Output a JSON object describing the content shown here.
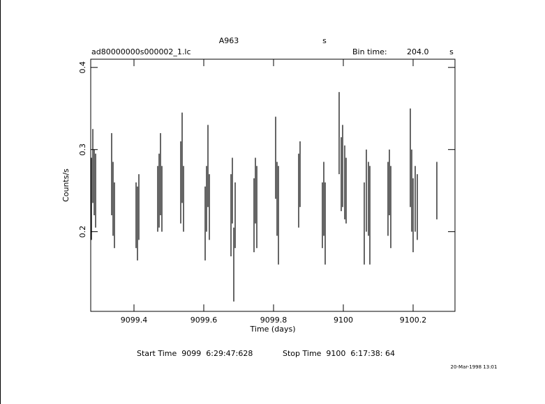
{
  "chart_data": {
    "type": "errorbar",
    "title": "A963",
    "title_unit": "s",
    "subtitle": "ad80000000s000002_1.lc",
    "bin_label": "Bin time:",
    "bin_value": "204.0",
    "bin_unit": "s",
    "xlabel": "Time (days)",
    "ylabel": "Counts/s",
    "footer": [
      "Start Time  9099  6:29:47:628",
      "Stop Time  9100  6:17:38: 64"
    ],
    "timestamp": "20-Mar-1998 13:01",
    "color": "#000000",
    "xlim": [
      9099.276,
      9100.32
    ],
    "ylim": [
      0.103,
      0.41
    ],
    "xticks": [
      9099.4,
      9099.6,
      9099.8,
      9100,
      9100.2
    ],
    "yticks": [
      0.2,
      0.3,
      0.4
    ],
    "x": [
      9099.278,
      9099.282,
      9099.286,
      9099.29,
      9099.336,
      9099.34,
      9099.344,
      9099.406,
      9099.41,
      9099.414,
      9099.468,
      9099.472,
      9099.476,
      9099.48,
      9099.534,
      9099.538,
      9099.542,
      9099.604,
      9099.608,
      9099.612,
      9099.616,
      9099.678,
      9099.682,
      9099.686,
      9099.69,
      9099.744,
      9099.748,
      9099.752,
      9099.806,
      9099.81,
      9099.814,
      9099.872,
      9099.876,
      9099.94,
      9099.944,
      9099.948,
      9099.988,
      9099.994,
      9099.998,
      9100.004,
      9100.008,
      9100.06,
      9100.066,
      9100.072,
      9100.076,
      9100.128,
      9100.132,
      9100.136,
      9100.192,
      9100.196,
      9100.2,
      9100.206,
      9100.212,
      9100.268
    ],
    "values": [
      0.24,
      0.28,
      0.26,
      0.25,
      0.27,
      0.24,
      0.22,
      0.22,
      0.21,
      0.23,
      0.24,
      0.25,
      0.27,
      0.24,
      0.26,
      0.29,
      0.24,
      0.21,
      0.24,
      0.28,
      0.23,
      0.22,
      0.25,
      0.16,
      0.22,
      0.22,
      0.25,
      0.23,
      0.29,
      0.24,
      0.22,
      0.25,
      0.27,
      0.22,
      0.24,
      0.21,
      0.32,
      0.27,
      0.28,
      0.26,
      0.25,
      0.21,
      0.25,
      0.24,
      0.22,
      0.24,
      0.26,
      0.23,
      0.29,
      0.25,
      0.22,
      0.24,
      0.23,
      0.25
    ],
    "errors": [
      0.05,
      0.045,
      0.04,
      0.045,
      0.05,
      0.045,
      0.04,
      0.04,
      0.045,
      0.04,
      0.04,
      0.045,
      0.05,
      0.04,
      0.05,
      0.055,
      0.04,
      0.045,
      0.04,
      0.05,
      0.04,
      0.05,
      0.04,
      0.045,
      0.04,
      0.045,
      0.04,
      0.05,
      0.05,
      0.045,
      0.06,
      0.045,
      0.04,
      0.04,
      0.045,
      0.05,
      0.05,
      0.045,
      0.05,
      0.045,
      0.04,
      0.05,
      0.05,
      0.045,
      0.06,
      0.045,
      0.04,
      0.05,
      0.06,
      0.05,
      0.045,
      0.04,
      0.04,
      0.035
    ]
  }
}
